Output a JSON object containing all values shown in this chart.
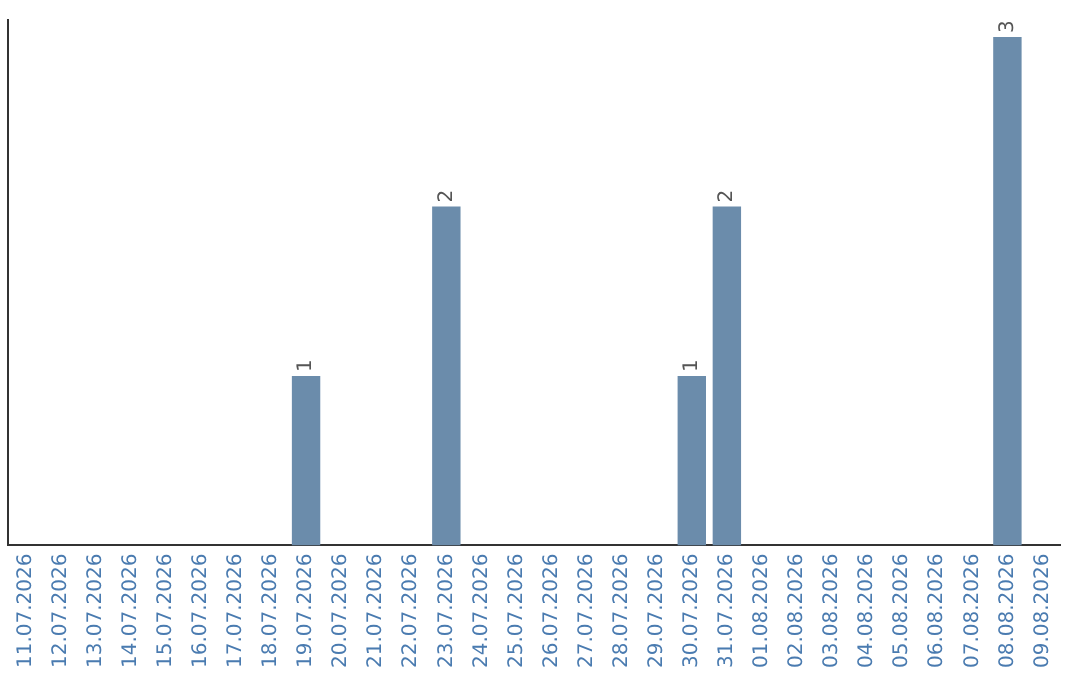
{
  "chart_data": {
    "type": "bar",
    "categories": [
      "11.07.2026",
      "12.07.2026",
      "13.07.2026",
      "14.07.2026",
      "15.07.2026",
      "16.07.2026",
      "17.07.2026",
      "18.07.2026",
      "19.07.2026",
      "20.07.2026",
      "21.07.2026",
      "22.07.2026",
      "23.07.2026",
      "24.07.2026",
      "25.07.2026",
      "26.07.2026",
      "27.07.2026",
      "28.07.2026",
      "29.07.2026",
      "30.07.2026",
      "31.07.2026",
      "01.08.2026",
      "02.08.2026",
      "03.08.2026",
      "04.08.2026",
      "05.08.2026",
      "06.08.2026",
      "07.08.2026",
      "08.08.2026",
      "09.08.2026"
    ],
    "values": [
      null,
      null,
      null,
      null,
      null,
      null,
      null,
      null,
      1,
      null,
      null,
      null,
      2,
      null,
      null,
      null,
      null,
      null,
      null,
      1,
      2,
      null,
      null,
      null,
      null,
      null,
      null,
      null,
      3,
      null
    ],
    "color": "#6b8cab",
    "ylim": [
      0,
      3.1
    ],
    "tick_labels": "x",
    "data_labels": true,
    "grid": false,
    "legend": false
  }
}
